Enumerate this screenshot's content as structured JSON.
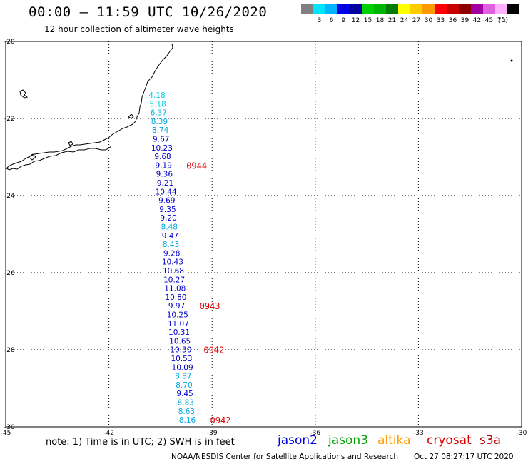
{
  "header": {
    "title": "00:00 – 11:59 UTC 10/26/2020",
    "subtitle": "12 hour collection of altimeter wave heights"
  },
  "legend": {
    "unit": "(ft)",
    "bins": [
      {
        "color": "#808080",
        "label": ""
      },
      {
        "color": "#00e5ff",
        "label": "3"
      },
      {
        "color": "#00b4ff",
        "label": "6"
      },
      {
        "color": "#0000e6",
        "label": "9"
      },
      {
        "color": "#0000a0",
        "label": "12"
      },
      {
        "color": "#00d000",
        "label": "15"
      },
      {
        "color": "#00b400",
        "label": "18"
      },
      {
        "color": "#007d00",
        "label": "21"
      },
      {
        "color": "#ffff00",
        "label": "24"
      },
      {
        "color": "#ffcc00",
        "label": "27"
      },
      {
        "color": "#ff9900",
        "label": "30"
      },
      {
        "color": "#ff0000",
        "label": "33"
      },
      {
        "color": "#c80000",
        "label": "36"
      },
      {
        "color": "#8c0000",
        "label": "39"
      },
      {
        "color": "#a000a0",
        "label": "42"
      },
      {
        "color": "#e060e0",
        "label": "45"
      },
      {
        "color": "#ffb0ff",
        "label": "70"
      },
      {
        "color": "#000000",
        "label": ""
      }
    ]
  },
  "axes": {
    "lat_labels": [
      "-20",
      "-22",
      "-24",
      "-26",
      "-28",
      "-30"
    ],
    "lon_labels": [
      "-45",
      "-42",
      "-39",
      "-36",
      "-33",
      "-30"
    ]
  },
  "track": {
    "readings": [
      {
        "value": "4.18",
        "color": "#00d0e8"
      },
      {
        "value": "5.18",
        "color": "#00d0e8"
      },
      {
        "value": "6.37",
        "color": "#00b0e0"
      },
      {
        "value": "8.39",
        "color": "#00a8e0"
      },
      {
        "value": "8.74",
        "color": "#00a8e0"
      },
      {
        "value": "9.67",
        "color": "#0000c8"
      },
      {
        "value": "10.23",
        "color": "#0000c8"
      },
      {
        "value": "9.68",
        "color": "#0000c8"
      },
      {
        "value": "9.19",
        "color": "#0000c8"
      },
      {
        "value": "9.36",
        "color": "#0000c8"
      },
      {
        "value": "9.21",
        "color": "#0000c8"
      },
      {
        "value": "10.44",
        "color": "#0000c8"
      },
      {
        "value": "9.69",
        "color": "#0000c8"
      },
      {
        "value": "9.35",
        "color": "#0000c8"
      },
      {
        "value": "9.20",
        "color": "#0000c8"
      },
      {
        "value": "8.48",
        "color": "#00a8e0"
      },
      {
        "value": "9.47",
        "color": "#0000c8"
      },
      {
        "value": "8.43",
        "color": "#00a8e0"
      },
      {
        "value": "9.28",
        "color": "#0000c8"
      },
      {
        "value": "10.43",
        "color": "#0000c8"
      },
      {
        "value": "10.68",
        "color": "#0000c8"
      },
      {
        "value": "10.27",
        "color": "#0000c8"
      },
      {
        "value": "11.08",
        "color": "#0000c8"
      },
      {
        "value": "10.80",
        "color": "#0000c8"
      },
      {
        "value": "9.97",
        "color": "#0000c8"
      },
      {
        "value": "10.25",
        "color": "#0000c8"
      },
      {
        "value": "11.07",
        "color": "#0000c8"
      },
      {
        "value": "10.31",
        "color": "#0000c8"
      },
      {
        "value": "10.65",
        "color": "#0000c8"
      },
      {
        "value": "10.30",
        "color": "#0000c8"
      },
      {
        "value": "10.53",
        "color": "#0000c8"
      },
      {
        "value": "10.09",
        "color": "#0000c8"
      },
      {
        "value": "8.87",
        "color": "#00a8e0"
      },
      {
        "value": "8.70",
        "color": "#00a8e0"
      },
      {
        "value": "9.45",
        "color": "#0000c8"
      },
      {
        "value": "8.83",
        "color": "#00a8e0"
      },
      {
        "value": "8.63",
        "color": "#00a8e0"
      },
      {
        "value": "8.16",
        "color": "#00a8e0"
      }
    ],
    "time_labels": [
      {
        "text": "0944",
        "after_index": 8
      },
      {
        "text": "0943",
        "after_index": 24
      },
      {
        "text": "0942",
        "after_index": 29
      },
      {
        "text": "0942",
        "after_index": 37
      }
    ],
    "time_label_color": "#e00000"
  },
  "footer": {
    "note": "note: 1) Time is in UTC; 2) SWH is in feet",
    "satellites": [
      {
        "name": "jason2",
        "color": "#0000e6"
      },
      {
        "name": "jason3",
        "color": "#00a000"
      },
      {
        "name": "altika",
        "color": "#ff9900"
      },
      {
        "name": "cryosat",
        "color": "#e00000"
      },
      {
        "name": "s3a",
        "color": "#b00000"
      }
    ],
    "credit": "NOAA/NESDIS Center for Satellite Applications and Research",
    "timestamp": "Oct 27 08:27:17 UTC 2020"
  }
}
